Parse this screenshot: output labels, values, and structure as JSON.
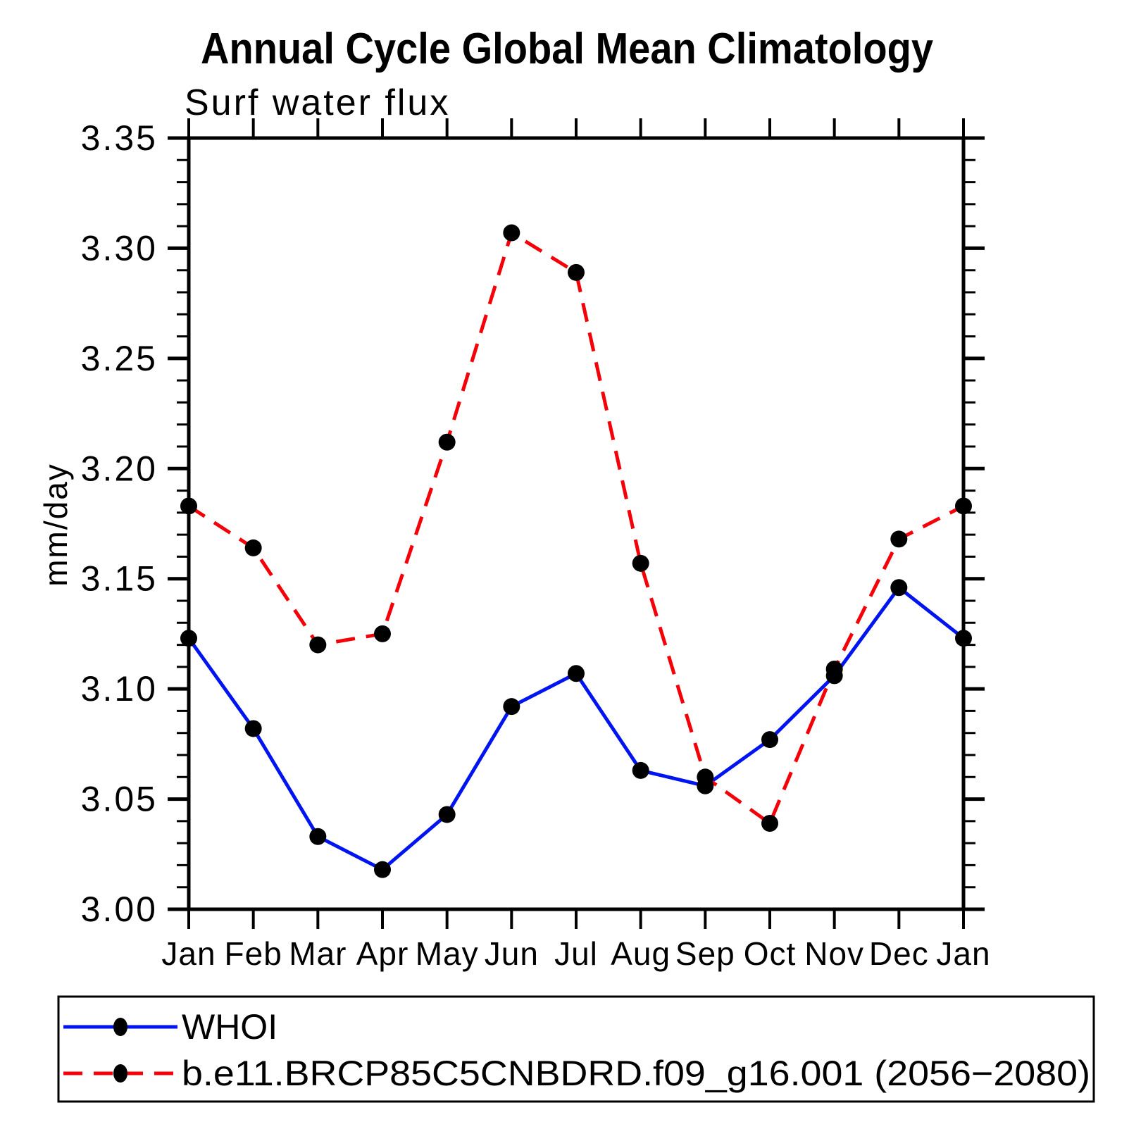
{
  "title": "Annual Cycle Global Mean Climatology",
  "subtitle": "Surf water flux",
  "chart_data": {
    "type": "line",
    "categories": [
      "Jan",
      "Feb",
      "Mar",
      "Apr",
      "May",
      "Jun",
      "Jul",
      "Aug",
      "Sep",
      "Oct",
      "Nov",
      "Dec",
      "Jan"
    ],
    "series": [
      {
        "name": "WHOI",
        "color": "#0014f0",
        "style": "solid",
        "marker": "filled-circle",
        "marker_color": "#000000",
        "values": [
          3.123,
          3.082,
          3.033,
          3.018,
          3.043,
          3.092,
          3.107,
          3.063,
          3.056,
          3.077,
          3.106,
          3.146,
          3.123
        ]
      },
      {
        "name": "b.e11.BRCP85C5CNBDRD.f09_g16.001 (2056−2080)",
        "color": "#f50008",
        "style": "dashed",
        "marker": "filled-circle",
        "marker_color": "#000000",
        "values": [
          3.183,
          3.164,
          3.12,
          3.125,
          3.212,
          3.307,
          3.289,
          3.157,
          3.06,
          3.039,
          3.109,
          3.168,
          3.183
        ]
      }
    ],
    "xlabel": "",
    "ylabel": "mm/day",
    "ylim": [
      3.0,
      3.35
    ],
    "y_major_tick_step": 0.05,
    "y_minor_tick_step": 0.01,
    "y_tick_labels": [
      "3.00",
      "3.05",
      "3.10",
      "3.15",
      "3.20",
      "3.25",
      "3.30",
      "3.35"
    ],
    "grid": false,
    "legend_position": "bottom-box"
  }
}
